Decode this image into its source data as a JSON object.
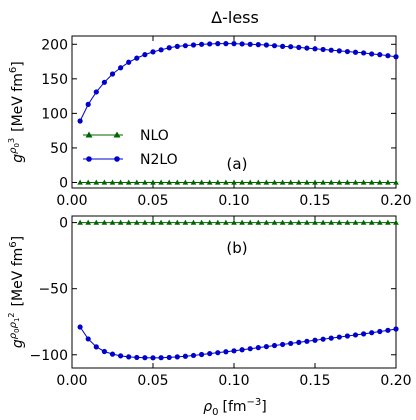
{
  "figure": {
    "title": "Δ-less",
    "xlabel_base": "ρ",
    "xlabel_sub": "0",
    "xlabel_unit": "[fm",
    "xlabel_exp": "−3",
    "xlabel_close": "]"
  },
  "chart_data": [
    {
      "type": "line",
      "panel_label": "(a)",
      "ylabel_symbol": "g",
      "ylabel_sup": "ρ",
      "ylabel_sup_sub": "0",
      "ylabel_sup_exp": "3",
      "ylabel_unit": "[MeV fm",
      "ylabel_unit_exp": "6",
      "ylabel_close": "]",
      "xlim": [
        0,
        0.2
      ],
      "ylim": [
        -8,
        212
      ],
      "xticks": [
        0.0,
        0.05,
        0.1,
        0.15,
        0.2
      ],
      "xtick_labels": [
        "0.00",
        "0.05",
        "0.10",
        "0.15",
        "0.20"
      ],
      "yticks": [
        0,
        50,
        100,
        150,
        200
      ],
      "ytick_labels": [
        "0",
        "50",
        "100",
        "150",
        "200"
      ],
      "legend": {
        "placement": "center-left"
      },
      "series": [
        {
          "name": "NLO",
          "color": "#006400",
          "marker": "triangle",
          "x": [
            0.005,
            0.01,
            0.015,
            0.02,
            0.025,
            0.03,
            0.035,
            0.04,
            0.045,
            0.05,
            0.055,
            0.06,
            0.065,
            0.07,
            0.075,
            0.08,
            0.085,
            0.09,
            0.095,
            0.1,
            0.105,
            0.11,
            0.115,
            0.12,
            0.125,
            0.13,
            0.135,
            0.14,
            0.145,
            0.15,
            0.155,
            0.16,
            0.165,
            0.17,
            0.175,
            0.18,
            0.185,
            0.19,
            0.195,
            0.2
          ],
          "y": [
            0,
            0,
            0,
            0,
            0,
            0,
            0,
            0,
            0,
            0,
            0,
            0,
            0,
            0,
            0,
            0,
            0,
            0,
            0,
            0,
            0,
            0,
            0,
            0,
            0,
            0,
            0,
            0,
            0,
            0,
            0,
            0,
            0,
            0,
            0,
            0,
            0,
            0,
            0,
            0
          ]
        },
        {
          "name": "N2LO",
          "color": "#0000cc",
          "marker": "circle",
          "x": [
            0.005,
            0.01,
            0.015,
            0.02,
            0.025,
            0.03,
            0.035,
            0.04,
            0.045,
            0.05,
            0.055,
            0.06,
            0.065,
            0.07,
            0.075,
            0.08,
            0.085,
            0.09,
            0.095,
            0.1,
            0.105,
            0.11,
            0.115,
            0.12,
            0.125,
            0.13,
            0.135,
            0.14,
            0.145,
            0.15,
            0.155,
            0.16,
            0.165,
            0.17,
            0.175,
            0.18,
            0.185,
            0.19,
            0.195,
            0.2
          ],
          "y": [
            89,
            113,
            131,
            145,
            157,
            166,
            174,
            180,
            185,
            189,
            192,
            195,
            197,
            198,
            199,
            200,
            200.5,
            201,
            201,
            201,
            200.5,
            200,
            199.5,
            199,
            198,
            197,
            196.5,
            195.5,
            194.5,
            193.5,
            192.5,
            191.5,
            190.5,
            189.5,
            188.5,
            187.5,
            186,
            185,
            183.5,
            182
          ]
        }
      ]
    },
    {
      "type": "line",
      "panel_label": "(b)",
      "ylabel_symbol": "g",
      "ylabel_sup": "ρ",
      "ylabel_sup_sub": "0",
      "ylabel_sup_mid": "ρ",
      "ylabel_sup_sub2": "1",
      "ylabel_sup_exp": "2",
      "ylabel_unit": "[MeV fm",
      "ylabel_unit_exp": "6",
      "ylabel_close": "]",
      "xlim": [
        0,
        0.2
      ],
      "ylim": [
        -110,
        5
      ],
      "xticks": [
        0.0,
        0.05,
        0.1,
        0.15,
        0.2
      ],
      "xtick_labels": [
        "0.00",
        "0.05",
        "0.10",
        "0.15",
        "0.20"
      ],
      "yticks": [
        -100,
        -50,
        0
      ],
      "ytick_labels": [
        "−100",
        "−50",
        "0"
      ],
      "series": [
        {
          "name": "NLO",
          "color": "#006400",
          "marker": "triangle",
          "x": [
            0.005,
            0.01,
            0.015,
            0.02,
            0.025,
            0.03,
            0.035,
            0.04,
            0.045,
            0.05,
            0.055,
            0.06,
            0.065,
            0.07,
            0.075,
            0.08,
            0.085,
            0.09,
            0.095,
            0.1,
            0.105,
            0.11,
            0.115,
            0.12,
            0.125,
            0.13,
            0.135,
            0.14,
            0.145,
            0.15,
            0.155,
            0.16,
            0.165,
            0.17,
            0.175,
            0.18,
            0.185,
            0.19,
            0.195,
            0.2
          ],
          "y": [
            0,
            0,
            0,
            0,
            0,
            0,
            0,
            0,
            0,
            0,
            0,
            0,
            0,
            0,
            0,
            0,
            0,
            0,
            0,
            0,
            0,
            0,
            0,
            0,
            0,
            0,
            0,
            0,
            0,
            0,
            0,
            0,
            0,
            0,
            0,
            0,
            0,
            0,
            0,
            0
          ]
        },
        {
          "name": "N2LO",
          "color": "#0000cc",
          "marker": "circle",
          "x": [
            0.005,
            0.01,
            0.015,
            0.02,
            0.025,
            0.03,
            0.035,
            0.04,
            0.045,
            0.05,
            0.055,
            0.06,
            0.065,
            0.07,
            0.075,
            0.08,
            0.085,
            0.09,
            0.095,
            0.1,
            0.105,
            0.11,
            0.115,
            0.12,
            0.125,
            0.13,
            0.135,
            0.14,
            0.145,
            0.15,
            0.155,
            0.16,
            0.165,
            0.17,
            0.175,
            0.18,
            0.185,
            0.19,
            0.195,
            0.2
          ],
          "y": [
            -79,
            -88,
            -94,
            -97.5,
            -99.5,
            -100.8,
            -101.6,
            -102,
            -102.2,
            -102.3,
            -102.2,
            -102,
            -101.6,
            -101.1,
            -100.5,
            -99.8,
            -99.1,
            -98.4,
            -97.7,
            -97,
            -96.2,
            -95.4,
            -94.6,
            -93.8,
            -93,
            -92.2,
            -91.4,
            -90.6,
            -89.8,
            -89,
            -88.2,
            -87.4,
            -86.6,
            -85.8,
            -85,
            -84.2,
            -83.3,
            -82.4,
            -81.5,
            -80.5
          ]
        }
      ]
    }
  ]
}
